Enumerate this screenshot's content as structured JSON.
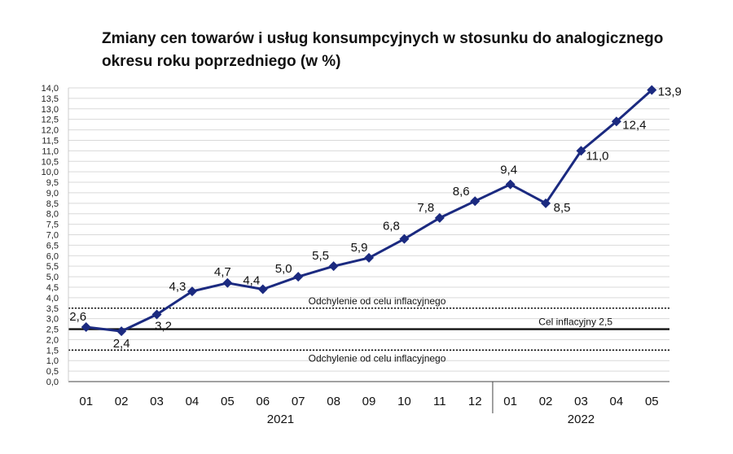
{
  "chart_data": {
    "type": "line",
    "title": "Zmiany cen towarów i usług konsumpcyjnych w stosunku do analogicznego okresu roku poprzedniego (w %)",
    "categories": [
      "01",
      "02",
      "03",
      "04",
      "05",
      "06",
      "07",
      "08",
      "09",
      "10",
      "11",
      "12",
      "01",
      "02",
      "03",
      "04",
      "05"
    ],
    "years": [
      {
        "label": "2021",
        "start": 0,
        "end": 11
      },
      {
        "label": "2022",
        "start": 12,
        "end": 16
      }
    ],
    "values": [
      2.6,
      2.4,
      3.2,
      4.3,
      4.7,
      4.4,
      5.0,
      5.5,
      5.9,
      6.8,
      7.8,
      8.6,
      9.4,
      8.5,
      11.0,
      12.4,
      13.9
    ],
    "value_labels": [
      "2,6",
      "2,4",
      "3,2",
      "4,3",
      "4,7",
      "4,4",
      "5,0",
      "5,5",
      "5,9",
      "6,8",
      "7,8",
      "8,6",
      "9,4",
      "8,5",
      "11,0",
      "12,4",
      "13,9"
    ],
    "ylim": [
      0,
      14
    ],
    "ystep": 0.5,
    "grid": true,
    "reference_lines": [
      {
        "value": 3.5,
        "style": "dotted",
        "label": "Odchylenie od celu inflacyjnego"
      },
      {
        "value": 2.5,
        "style": "solid",
        "label": "Cel inflacyjny 2,5"
      },
      {
        "value": 1.5,
        "style": "dotted",
        "label": "Odchylenie od celu inflacyjnego"
      }
    ],
    "series_color": "#1b2a80"
  }
}
